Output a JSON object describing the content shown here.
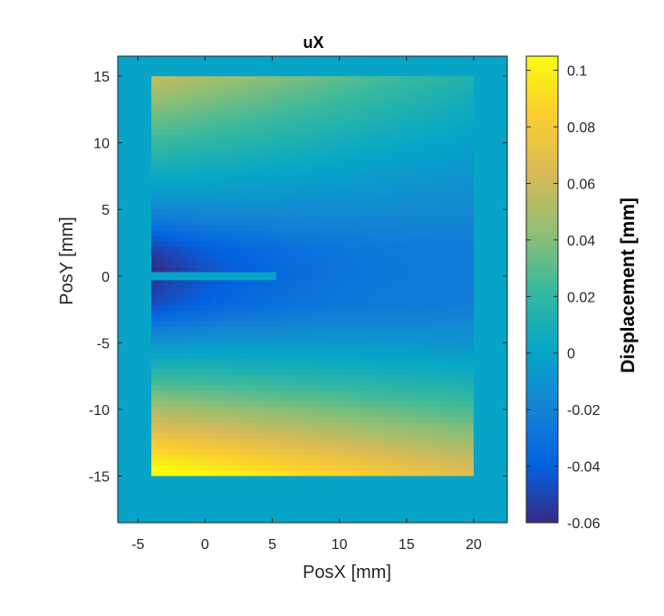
{
  "chart_data": {
    "type": "heatmap",
    "title": "uX",
    "xlabel": "PosX  [mm]",
    "ylabel": "PosY  [mm]",
    "xlim": [
      -6.5,
      22.5
    ],
    "ylim": [
      -18.5,
      16.5
    ],
    "xticks": [
      -5,
      0,
      5,
      10,
      15,
      20
    ],
    "yticks": [
      -15,
      -10,
      -5,
      0,
      5,
      10,
      15
    ],
    "background_value": 0,
    "specimen": {
      "x_range": [
        -4,
        20
      ],
      "y_range": [
        -15,
        15
      ],
      "notch": {
        "x_range": [
          -4,
          5.3
        ],
        "y_range": [
          -0.3,
          0.3
        ]
      }
    },
    "field_samples": [
      {
        "x": -3,
        "y": 14,
        "value": 0.05
      },
      {
        "x": 19,
        "y": 14,
        "value": 0.01
      },
      {
        "x": -3,
        "y": 1.5,
        "value": -0.06
      },
      {
        "x": -3,
        "y": -1.5,
        "value": -0.055
      },
      {
        "x": 10,
        "y": 0,
        "value": -0.025
      },
      {
        "x": -3,
        "y": -14,
        "value": 0.1
      },
      {
        "x": 19,
        "y": -14,
        "value": 0.06
      }
    ],
    "colorbar": {
      "label": "Displacement [mm]",
      "clim": [
        -0.06,
        0.105
      ],
      "ticks": [
        -0.06,
        -0.04,
        -0.02,
        0,
        0.02,
        0.04,
        0.06,
        0.08,
        0.1
      ],
      "tick_labels": [
        "-0.06",
        "-0.04",
        "-0.02",
        "0",
        "0.02",
        "0.04",
        "0.06",
        "0.08",
        "0.1"
      ],
      "colormap": "parula"
    },
    "grid": false
  }
}
